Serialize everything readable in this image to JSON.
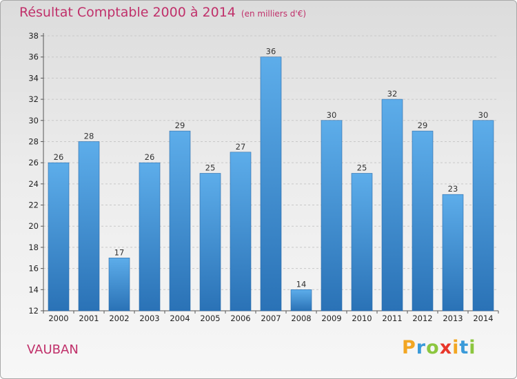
{
  "title": "Résultat Comptable 2000 à 2014",
  "unit": "(en milliers d'€)",
  "commune": "VAUBAN",
  "logo": {
    "letters": [
      "P",
      "r",
      "o",
      "x",
      "i",
      "t",
      "i"
    ],
    "colors": [
      "#f2a623",
      "#3a9ad9",
      "#8cc63f",
      "#e8372b",
      "#f2a623",
      "#3a9ad9",
      "#8cc63f"
    ]
  },
  "chart_data": {
    "type": "bar",
    "categories": [
      "2000",
      "2001",
      "2002",
      "2003",
      "2004",
      "2005",
      "2006",
      "2007",
      "2008",
      "2009",
      "2010",
      "2011",
      "2012",
      "2013",
      "2014"
    ],
    "values": [
      26,
      28,
      17,
      26,
      29,
      25,
      27,
      36,
      14,
      30,
      25,
      32,
      29,
      23,
      30
    ],
    "ylim": [
      12,
      38
    ],
    "yticks": [
      12,
      14,
      16,
      18,
      20,
      22,
      24,
      26,
      28,
      30,
      32,
      34,
      36,
      38
    ],
    "grid": true,
    "bar_color": "#3a8fd6",
    "bar_color_light": "#5dadea",
    "bar_color_dark": "#2a72b6"
  }
}
